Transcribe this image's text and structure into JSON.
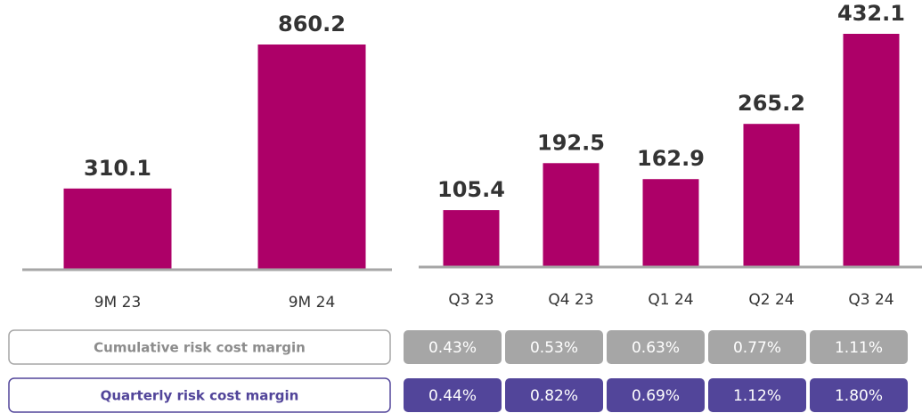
{
  "chart_data": [
    {
      "type": "bar",
      "categories": [
        "9M 23",
        "9M 24"
      ],
      "values": [
        310.1,
        860.2
      ],
      "color": "#ad0068"
    },
    {
      "type": "bar",
      "categories": [
        "Q3 23",
        "Q4 23",
        "Q1 24",
        "Q2 24",
        "Q3 24"
      ],
      "values": [
        105.4,
        192.5,
        162.9,
        265.2,
        432.1
      ],
      "color": "#ad0068"
    }
  ],
  "table": {
    "rows": [
      {
        "label": "Cumulative risk cost margin",
        "cells": [
          "0.43%",
          "0.53%",
          "0.63%",
          "0.77%",
          "1.11%"
        ],
        "color": "#a6a6a6"
      },
      {
        "label": "Quarterly risk cost margin",
        "cells": [
          "0.44%",
          "0.82%",
          "0.69%",
          "1.12%",
          "1.80%"
        ],
        "color": "#52459a"
      }
    ]
  }
}
